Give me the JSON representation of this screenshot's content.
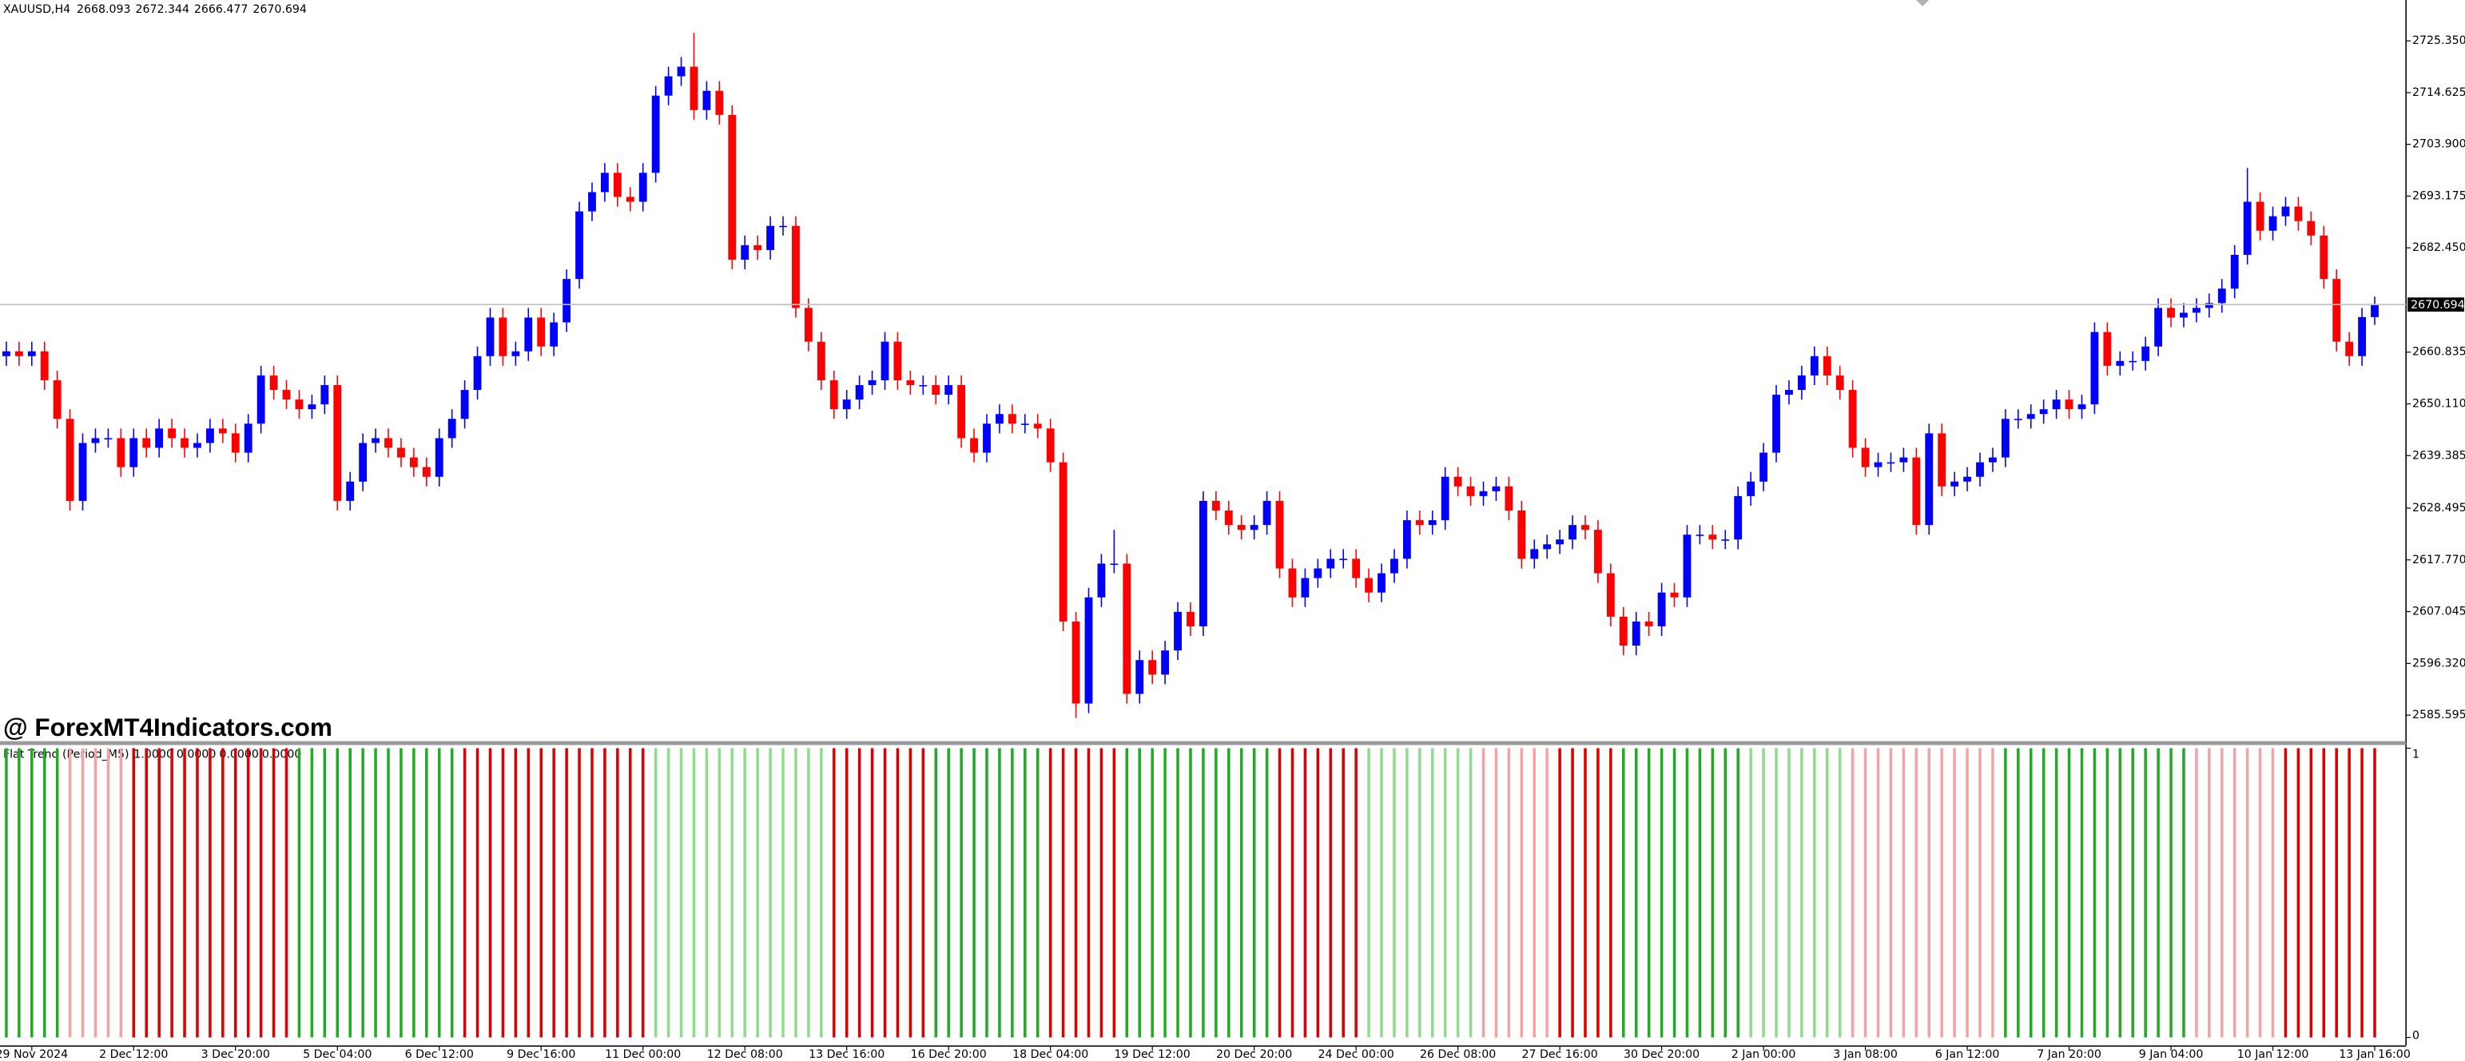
{
  "chart_data": {
    "type": "candlestick",
    "title": "XAUUSD,H4",
    "watermark": "@ ForexMT4Indicators.com",
    "colors": {
      "up": "#0000ff",
      "down": "#ff0000"
    },
    "grid": false,
    "ylim": [
      2580.37,
      2733.82
    ],
    "yticks": [
      {
        "value": 2725.35,
        "label": "2725.350"
      },
      2714.625,
      {
        "value": 2703.9,
        "label": "2703.900"
      },
      2693.175,
      {
        "value": 2682.45,
        "label": "2682.450"
      },
      2660.835,
      {
        "value": 2650.11,
        "label": "2650.110"
      },
      2639.385,
      2628.495,
      {
        "value": 2617.77,
        "label": "2617.770"
      },
      2607.045,
      {
        "value": 2596.32,
        "label": "2596.320"
      },
      2585.595
    ],
    "current_price": 2670.694,
    "categories": [
      null,
      null,
      "29 Nov 2024",
      null,
      null,
      null,
      null,
      null,
      null,
      null,
      "2 Dec 12:00",
      null,
      null,
      null,
      null,
      null,
      null,
      null,
      "3 Dec 20:00",
      null,
      null,
      null,
      null,
      null,
      null,
      null,
      "5 Dec 04:00",
      null,
      null,
      null,
      null,
      null,
      null,
      null,
      "6 Dec 12:00",
      null,
      null,
      null,
      null,
      null,
      null,
      null,
      "9 Dec 16:00",
      null,
      null,
      null,
      null,
      null,
      null,
      null,
      "11 Dec 00:00",
      null,
      null,
      null,
      null,
      null,
      null,
      null,
      "12 Dec 08:00",
      null,
      null,
      null,
      null,
      null,
      null,
      null,
      "13 Dec 16:00",
      null,
      null,
      null,
      null,
      null,
      null,
      null,
      "16 Dec 20:00",
      null,
      null,
      null,
      null,
      null,
      null,
      null,
      "18 Dec 04:00",
      null,
      null,
      null,
      null,
      null,
      null,
      null,
      "19 Dec 12:00",
      null,
      null,
      null,
      null,
      null,
      null,
      null,
      "20 Dec 20:00",
      null,
      null,
      null,
      null,
      null,
      null,
      null,
      "24 Dec 00:00",
      null,
      null,
      null,
      null,
      null,
      null,
      null,
      "26 Dec 08:00",
      null,
      null,
      null,
      null,
      null,
      null,
      null,
      "27 Dec 16:00",
      null,
      null,
      null,
      null,
      null,
      null,
      null,
      "30 Dec 20:00",
      null,
      null,
      null,
      null,
      null,
      null,
      null,
      "2 Jan 00:00",
      null,
      null,
      null,
      null,
      null,
      null,
      null,
      "3 Jan 08:00",
      null,
      null,
      null,
      null,
      null,
      null,
      null,
      "6 Jan 12:00",
      null,
      null,
      null,
      null,
      null,
      null,
      null,
      "7 Jan 20:00",
      null,
      null,
      null,
      null,
      null,
      null,
      null,
      "9 Jan 04:00",
      null,
      null,
      null,
      null,
      null,
      null,
      null,
      "10 Jan 12:00",
      null,
      null,
      null,
      null,
      null,
      null,
      null,
      "13 Jan 16:00"
    ],
    "open": [
      2660,
      2661,
      2660,
      2661,
      2655,
      2647,
      2630,
      2642,
      2643,
      2643,
      2637,
      2643,
      2641,
      2645,
      2643,
      2641,
      2642,
      2645,
      2644,
      2640,
      2646,
      2656,
      2653,
      2651,
      2649,
      2650,
      2654,
      2630,
      2634,
      2642,
      2643,
      2641,
      2639,
      2637,
      2635,
      2643,
      2647,
      2653,
      2660,
      2668,
      2660,
      2661,
      2668,
      2662,
      2667,
      2676,
      2690,
      2694,
      2698,
      2693,
      2692,
      2698,
      2714,
      2718,
      2720,
      2711,
      2715,
      2710,
      2680,
      2683,
      2682,
      2687,
      2687,
      2670,
      2663,
      2655,
      2649,
      2651,
      2654,
      2655,
      2663,
      2655,
      2654,
      2654,
      2652,
      2654,
      2643,
      2640,
      2646,
      2648,
      2646,
      2646,
      2645,
      2638,
      2605,
      2588,
      2610,
      2617,
      2617,
      2590,
      2597,
      2594,
      2599,
      2607,
      2604,
      2630,
      2628,
      2625,
      2624,
      2625,
      2630,
      2616,
      2610,
      2614,
      2616,
      2618,
      2618,
      2614,
      2611,
      2615,
      2618,
      2626,
      2625,
      2626,
      2635,
      2633,
      2631,
      2632,
      2633,
      2628,
      2618,
      2620,
      2621,
      2622,
      2625,
      2624,
      2615,
      2606,
      2600,
      2605,
      2604,
      2611,
      2610,
      2623,
      2623,
      2622,
      2622,
      2631,
      2634,
      2640,
      2652,
      2653,
      2656,
      2660,
      2656,
      2653,
      2641,
      2637,
      2638,
      2638,
      2639,
      2625,
      2644,
      2633,
      2634,
      2635,
      2638,
      2639,
      2647,
      2647,
      2648,
      2649,
      2651,
      2649,
      2650,
      2665,
      2658,
      2659,
      2659,
      2662,
      2670,
      2668,
      2669,
      2670,
      2671,
      2674,
      2681,
      2692,
      2686,
      2689,
      2691,
      2688,
      2685,
      2676,
      2663,
      2660,
      2668.093
    ],
    "high": [
      2663,
      2663,
      2663,
      2663,
      2657,
      2649,
      2644,
      2645,
      2645,
      2645,
      2645,
      2645,
      2647,
      2647,
      2645,
      2644,
      2647,
      2647,
      2646,
      2648,
      2658,
      2658,
      2655,
      2653,
      2652,
      2656,
      2656,
      2636,
      2644,
      2645,
      2645,
      2643,
      2641,
      2639,
      2645,
      2649,
      2655,
      2662,
      2670,
      2670,
      2663,
      2670,
      2670,
      2669,
      2678,
      2692,
      2696,
      2700,
      2700,
      2695,
      2700,
      2716,
      2720,
      2722,
      2727,
      2717,
      2717,
      2712,
      2685,
      2685,
      2689,
      2689,
      2689,
      2672,
      2665,
      2657,
      2653,
      2656,
      2657,
      2665,
      2665,
      2657,
      2656,
      2656,
      2656,
      2656,
      2645,
      2648,
      2650,
      2650,
      2648,
      2648,
      2647,
      2640,
      2607,
      2612,
      2619,
      2624,
      2619,
      2599,
      2599,
      2601,
      2609,
      2609,
      2632,
      2632,
      2630,
      2627,
      2627,
      2632,
      2632,
      2618,
      2616,
      2618,
      2620,
      2620,
      2620,
      2616,
      2617,
      2620,
      2628,
      2628,
      2628,
      2637,
      2637,
      2635,
      2634,
      2635,
      2635,
      2630,
      2622,
      2623,
      2624,
      2627,
      2627,
      2626,
      2617,
      2608,
      2607,
      2607,
      2613,
      2613,
      2625,
      2625,
      2625,
      2624,
      2633,
      2636,
      2642,
      2654,
      2655,
      2658,
      2662,
      2662,
      2658,
      2655,
      2643,
      2640,
      2640,
      2641,
      2641,
      2646,
      2646,
      2636,
      2637,
      2640,
      2641,
      2649,
      2649,
      2650,
      2651,
      2653,
      2653,
      2652,
      2667,
      2667,
      2661,
      2661,
      2664,
      2672,
      2672,
      2671,
      2672,
      2673,
      2676,
      2683,
      2699,
      2694,
      2691,
      2693,
      2693,
      2690,
      2687,
      2678,
      2665,
      2670,
      2672.344
    ],
    "low": [
      2658,
      2658,
      2658,
      2653,
      2645,
      2628,
      2628,
      2640,
      2641,
      2635,
      2635,
      2639,
      2639,
      2641,
      2639,
      2639,
      2640,
      2642,
      2638,
      2638,
      2644,
      2651,
      2649,
      2647,
      2647,
      2648,
      2628,
      2628,
      2632,
      2640,
      2639,
      2637,
      2635,
      2633,
      2633,
      2641,
      2645,
      2651,
      2658,
      2658,
      2658,
      2659,
      2660,
      2660,
      2665,
      2674,
      2688,
      2692,
      2691,
      2690,
      2690,
      2696,
      2712,
      2716,
      2709,
      2709,
      2708,
      2678,
      2678,
      2680,
      2680,
      2685,
      2668,
      2661,
      2653,
      2647,
      2647,
      2649,
      2652,
      2653,
      2653,
      2652,
      2652,
      2650,
      2650,
      2641,
      2638,
      2638,
      2644,
      2644,
      2644,
      2643,
      2636,
      2603,
      2585,
      2586,
      2608,
      2615,
      2588,
      2588,
      2592,
      2592,
      2597,
      2602,
      2602,
      2626,
      2623,
      2622,
      2622,
      2623,
      2614,
      2608,
      2608,
      2612,
      2614,
      2616,
      2612,
      2609,
      2609,
      2613,
      2616,
      2623,
      2623,
      2624,
      2631,
      2629,
      2629,
      2630,
      2626,
      2616,
      2616,
      2618,
      2619,
      2620,
      2622,
      2613,
      2604,
      2598,
      2598,
      2602,
      2602,
      2608,
      2608,
      2621,
      2620,
      2620,
      2620,
      2629,
      2632,
      2638,
      2650,
      2651,
      2654,
      2654,
      2651,
      2639,
      2635,
      2635,
      2636,
      2636,
      2623,
      2623,
      2631,
      2631,
      2632,
      2633,
      2636,
      2637,
      2645,
      2645,
      2646,
      2647,
      2647,
      2647,
      2648,
      2656,
      2656,
      2657,
      2657,
      2660,
      2666,
      2666,
      2667,
      2668,
      2669,
      2672,
      2679,
      2684,
      2684,
      2687,
      2686,
      2683,
      2674,
      2661,
      2658,
      2658,
      2666.477
    ],
    "close": [
      2661,
      2660,
      2661,
      2655,
      2647,
      2630,
      2642,
      2643,
      2643,
      2637,
      2643,
      2641,
      2645,
      2643,
      2641,
      2642,
      2645,
      2644,
      2640,
      2646,
      2656,
      2653,
      2651,
      2649,
      2650,
      2654,
      2630,
      2634,
      2642,
      2643,
      2641,
      2639,
      2637,
      2635,
      2643,
      2647,
      2653,
      2660,
      2668,
      2660,
      2661,
      2668,
      2662,
      2667,
      2676,
      2690,
      2694,
      2698,
      2693,
      2692,
      2698,
      2714,
      2718,
      2720,
      2711,
      2715,
      2710,
      2680,
      2683,
      2682,
      2687,
      2687,
      2670,
      2663,
      2655,
      2649,
      2651,
      2654,
      2655,
      2663,
      2655,
      2654,
      2654,
      2652,
      2654,
      2643,
      2640,
      2646,
      2648,
      2646,
      2646,
      2645,
      2638,
      2605,
      2588,
      2610,
      2617,
      2617,
      2590,
      2597,
      2594,
      2599,
      2607,
      2604,
      2630,
      2628,
      2625,
      2624,
      2625,
      2630,
      2616,
      2610,
      2614,
      2616,
      2618,
      2618,
      2614,
      2611,
      2615,
      2618,
      2626,
      2625,
      2626,
      2635,
      2633,
      2631,
      2632,
      2633,
      2628,
      2618,
      2620,
      2621,
      2622,
      2625,
      2624,
      2615,
      2606,
      2600,
      2605,
      2604,
      2611,
      2610,
      2623,
      2623,
      2622,
      2622,
      2631,
      2634,
      2640,
      2652,
      2653,
      2656,
      2660,
      2656,
      2653,
      2641,
      2637,
      2638,
      2638,
      2639,
      2625,
      2644,
      2633,
      2634,
      2635,
      2638,
      2639,
      2647,
      2647,
      2648,
      2649,
      2651,
      2649,
      2650,
      2665,
      2658,
      2659,
      2659,
      2662,
      2670,
      2668,
      2669,
      2670,
      2671,
      2674,
      2681,
      2692,
      2686,
      2689,
      2691,
      2688,
      2685,
      2676,
      2663,
      2660,
      2668.093,
      2670.694
    ],
    "indicator": {
      "type": "bar",
      "title": "Flat Trend (Period_M5)",
      "buffer_labels": [
        "1.0000",
        "0.0000",
        "0.0000",
        "0.0000"
      ],
      "palette": [
        "#22aa22",
        "#8fdc8f",
        "#dd0000",
        "#f3a3a3"
      ],
      "ylim": [
        0,
        1
      ],
      "yticks": [
        0,
        1
      ],
      "values": [
        1,
        1,
        1,
        1,
        1,
        1,
        1,
        1,
        1,
        1,
        1,
        1,
        1,
        1,
        1,
        1,
        1,
        1,
        1,
        1,
        1,
        1,
        1,
        1,
        1,
        1,
        1,
        1,
        1,
        1,
        1,
        1,
        1,
        1,
        1,
        1,
        1,
        1,
        1,
        1,
        1,
        1,
        1,
        1,
        1,
        1,
        1,
        1,
        1,
        1,
        1,
        1,
        1,
        1,
        1,
        1,
        1,
        1,
        1,
        1,
        1,
        1,
        1,
        1,
        1,
        1,
        1,
        1,
        1,
        1,
        1,
        1,
        1,
        1,
        1,
        1,
        1,
        1,
        1,
        1,
        1,
        1,
        1,
        1,
        1,
        1,
        1,
        1,
        1,
        1,
        1,
        1,
        1,
        1,
        1,
        1,
        1,
        1,
        1,
        1,
        1,
        1,
        1,
        1,
        1,
        1,
        1,
        1,
        1,
        1,
        1,
        1,
        1,
        1,
        1,
        1,
        1,
        1,
        1,
        1,
        1,
        1,
        1,
        1,
        1,
        1,
        1,
        1,
        1,
        1,
        1,
        1,
        1,
        1,
        1,
        1,
        1,
        1,
        1,
        1,
        1,
        1,
        1,
        1,
        1,
        1,
        1,
        1,
        1,
        1,
        1,
        1,
        1,
        1,
        1,
        1,
        1,
        1,
        1,
        1,
        1,
        1,
        1,
        1,
        1,
        1,
        1,
        1,
        1,
        1,
        1,
        1,
        1,
        1,
        1,
        1,
        1,
        1,
        1,
        1,
        1,
        1,
        1,
        1,
        1,
        1,
        1
      ],
      "color_index": [
        0,
        0,
        0,
        0,
        0,
        3,
        3,
        3,
        3,
        3,
        2,
        2,
        2,
        2,
        2,
        2,
        2,
        2,
        2,
        2,
        2,
        2,
        2,
        0,
        0,
        0,
        0,
        0,
        0,
        0,
        0,
        0,
        0,
        0,
        0,
        0,
        2,
        2,
        2,
        2,
        2,
        2,
        2,
        2,
        2,
        2,
        2,
        2,
        2,
        2,
        2,
        1,
        1,
        1,
        1,
        1,
        1,
        1,
        1,
        1,
        1,
        1,
        1,
        1,
        1,
        2,
        2,
        2,
        2,
        2,
        2,
        2,
        2,
        0,
        0,
        0,
        0,
        0,
        0,
        0,
        0,
        0,
        2,
        2,
        2,
        2,
        2,
        2,
        0,
        0,
        0,
        0,
        0,
        0,
        0,
        0,
        0,
        0,
        0,
        0,
        2,
        2,
        2,
        2,
        2,
        2,
        2,
        1,
        1,
        1,
        1,
        1,
        1,
        1,
        1,
        1,
        3,
        3,
        3,
        3,
        3,
        3,
        2,
        2,
        2,
        2,
        2,
        0,
        0,
        0,
        0,
        0,
        0,
        0,
        0,
        0,
        0,
        1,
        1,
        1,
        1,
        1,
        1,
        1,
        1,
        3,
        3,
        3,
        3,
        3,
        3,
        3,
        3,
        3,
        3,
        3,
        3,
        0,
        0,
        0,
        0,
        0,
        0,
        0,
        0,
        0,
        0,
        0,
        0,
        0,
        0,
        0,
        3,
        3,
        3,
        3,
        3,
        3,
        3,
        2,
        2,
        2,
        2,
        2,
        2,
        2,
        2
      ]
    }
  }
}
